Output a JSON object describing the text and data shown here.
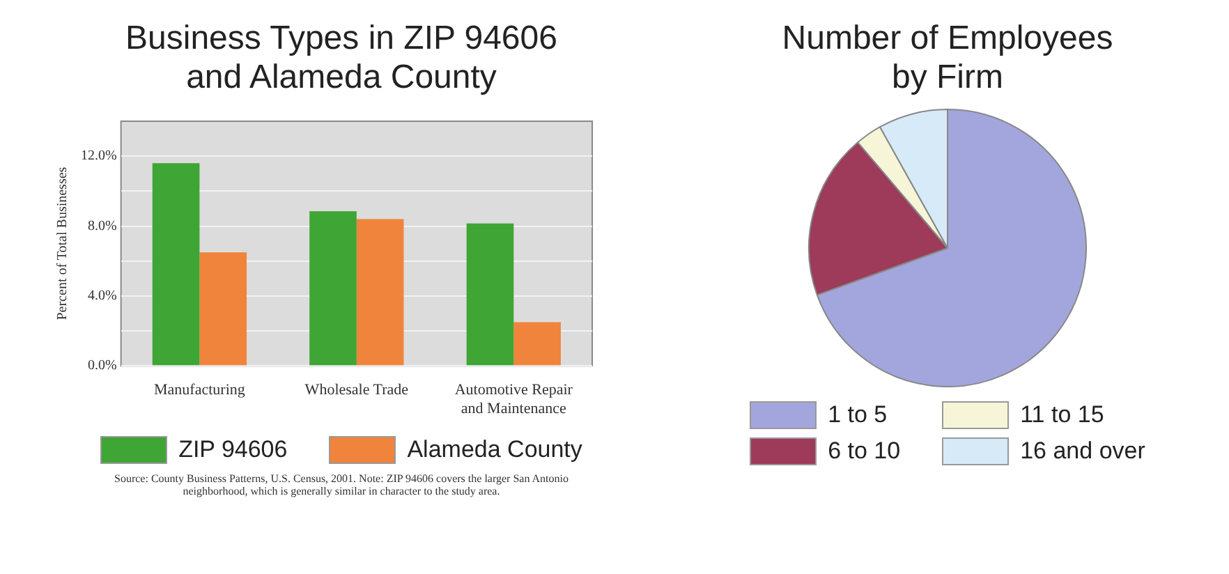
{
  "chart_data": [
    {
      "type": "bar",
      "title": "Business Types in ZIP 94606 and Alameda County",
      "ylabel": "Percent of Total Businesses",
      "categories": [
        "Manufacturing",
        "Wholesale Trade",
        "Automotive Repair and Maintenance"
      ],
      "series": [
        {
          "name": "ZIP 94606",
          "color": "#3fa535",
          "values": [
            11.6,
            8.85,
            8.15
          ]
        },
        {
          "name": "Alameda County",
          "color": "#f0843c",
          "values": [
            6.5,
            8.4,
            2.5
          ]
        }
      ],
      "ylim": [
        0,
        14
      ],
      "yticks": [
        {
          "value": 0,
          "label": "0.0%"
        },
        {
          "value": 2,
          "label": null
        },
        {
          "value": 4,
          "label": "4.0%"
        },
        {
          "value": 6,
          "label": null
        },
        {
          "value": 8,
          "label": "8.0%"
        },
        {
          "value": 10,
          "label": null
        },
        {
          "value": 12,
          "label": "12.0%"
        }
      ],
      "grid": "y",
      "legend": "bottom",
      "annotations": [
        "Source: County Business Patterns, U.S. Census, 2001.  Note: ZIP 94606 covers the larger San Antonio neighborhood, which is generally similar in character to the study area."
      ]
    },
    {
      "type": "pie",
      "title": "Number of Employees by Firm",
      "categories": [
        "1 to 5",
        "6 to 10",
        "11 to 15",
        "16 and over"
      ],
      "values": [
        69.5,
        19.3,
        3.1,
        8.1
      ],
      "colors": [
        "#a3a6dc",
        "#9e3a5a",
        "#f7f5d8",
        "#d6eaf8"
      ],
      "legend": "bottom"
    }
  ]
}
